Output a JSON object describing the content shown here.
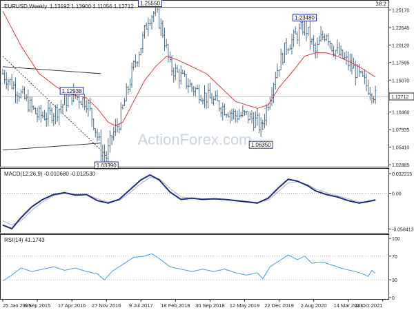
{
  "colors": {
    "bar": "#4a6f8a",
    "ma": "#e8323a",
    "macd": "#1a2a88",
    "signal": "#b0b0b0",
    "rsi": "#3c9cf0",
    "box": "#1e2aa6",
    "watermark": "#c9d5e0",
    "axis": "#222222",
    "dotted": "#9a9a9a"
  },
  "chart_data": [
    {
      "type": "candlestick-ohlc",
      "title": "EURUSD,Weekly",
      "header_values": "1.13192 1.13900 1.11056 1.12712",
      "watermark": "ActionForex.com",
      "ylim": [
        1.028,
        1.262
      ],
      "y_ticks": [
        {
          "v": 1.2517,
          "label": "1.25170"
        },
        {
          "v": 1.2264,
          "label": "1.22645"
        },
        {
          "v": 1.2012,
          "label": "1.20120"
        },
        {
          "v": 1.176,
          "label": "1.17595"
        },
        {
          "v": 1.1507,
          "label": "1.15070"
        },
        {
          "v": 1.1046,
          "label": "1.10460"
        },
        {
          "v": 1.0794,
          "label": "1.07935"
        },
        {
          "v": 1.0541,
          "label": "1.05410"
        },
        {
          "v": 1.0289,
          "label": "1.02885"
        }
      ],
      "last_price": {
        "v": 1.12712,
        "label": "1.12712"
      },
      "fib_label": {
        "v": 1.2555,
        "label": "38.2"
      },
      "price_anchors": [
        [
          0,
          1.16
        ],
        [
          10,
          1.13
        ],
        [
          19,
          1.1
        ],
        [
          25,
          1.1
        ],
        [
          31,
          1.11
        ],
        [
          38,
          1.13
        ],
        [
          46,
          1.12
        ],
        [
          50,
          1.09
        ],
        [
          54,
          1.05
        ],
        [
          57,
          1.04
        ],
        [
          60,
          1.07
        ],
        [
          64,
          1.09
        ],
        [
          68,
          1.13
        ],
        [
          72,
          1.17
        ],
        [
          76,
          1.2
        ],
        [
          80,
          1.24
        ],
        [
          84,
          1.25
        ],
        [
          88,
          1.22
        ],
        [
          92,
          1.17
        ],
        [
          96,
          1.16
        ],
        [
          100,
          1.15
        ],
        [
          104,
          1.14
        ],
        [
          110,
          1.13
        ],
        [
          116,
          1.12
        ],
        [
          122,
          1.11
        ],
        [
          128,
          1.1
        ],
        [
          134,
          1.1
        ],
        [
          140,
          1.09
        ],
        [
          142,
          1.08
        ],
        [
          144,
          1.1
        ],
        [
          147,
          1.13
        ],
        [
          150,
          1.16
        ],
        [
          153,
          1.18
        ],
        [
          156,
          1.2
        ],
        [
          160,
          1.21
        ],
        [
          163,
          1.22
        ],
        [
          166,
          1.23
        ],
        [
          169,
          1.21
        ],
        [
          172,
          1.19
        ],
        [
          175,
          1.21
        ],
        [
          178,
          1.22
        ],
        [
          181,
          1.2
        ],
        [
          184,
          1.19
        ],
        [
          188,
          1.18
        ],
        [
          192,
          1.17
        ],
        [
          195,
          1.16
        ],
        [
          198,
          1.15
        ],
        [
          201,
          1.14
        ],
        [
          203,
          1.135
        ],
        [
          205,
          1.127
        ]
      ],
      "ma_anchors": [
        [
          0,
          1.25
        ],
        [
          10,
          1.2
        ],
        [
          20,
          1.16
        ],
        [
          30,
          1.14
        ],
        [
          38,
          1.13
        ],
        [
          46,
          1.125
        ],
        [
          52,
          1.11
        ],
        [
          58,
          1.09
        ],
        [
          62,
          1.085
        ],
        [
          66,
          1.09
        ],
        [
          72,
          1.12
        ],
        [
          78,
          1.15
        ],
        [
          84,
          1.17
        ],
        [
          90,
          1.185
        ],
        [
          96,
          1.18
        ],
        [
          104,
          1.17
        ],
        [
          112,
          1.16
        ],
        [
          120,
          1.14
        ],
        [
          128,
          1.12
        ],
        [
          134,
          1.115
        ],
        [
          140,
          1.11
        ],
        [
          146,
          1.115
        ],
        [
          152,
          1.14
        ],
        [
          160,
          1.165
        ],
        [
          166,
          1.185
        ],
        [
          172,
          1.19
        ],
        [
          178,
          1.19
        ],
        [
          184,
          1.185
        ],
        [
          190,
          1.178
        ],
        [
          196,
          1.17
        ],
        [
          202,
          1.16
        ],
        [
          205,
          1.155
        ]
      ],
      "annotations": [
        {
          "i": 81,
          "price": 1.2555,
          "label": "1.25550",
          "pos": "above"
        },
        {
          "i": 166,
          "price": 1.2348,
          "label": "1.23480",
          "pos": "above"
        },
        {
          "i": 38,
          "price": 1.1293,
          "label": "1.12938",
          "pos": "above"
        },
        {
          "i": 57,
          "price": 1.0339,
          "label": "1.03390",
          "pos": "below"
        },
        {
          "i": 142,
          "price": 1.0635,
          "label": "1.06350",
          "pos": "below"
        }
      ],
      "trendlines": [
        {
          "from": [
            0,
            1.17
          ],
          "to": [
            54,
            1.16
          ]
        },
        {
          "from": [
            0,
            1.05
          ],
          "to": [
            54,
            1.06
          ]
        },
        {
          "from": [
            0,
            1.185
          ],
          "to": [
            56,
            1.045
          ]
        }
      ]
    },
    {
      "type": "line",
      "title": "MACD(12,26,9) -0.010680 -0.012530",
      "ylim": [
        -0.0625,
        0.0345
      ],
      "y_ticks": [
        {
          "v": 0.032215,
          "label": "0.032215"
        },
        {
          "v": 0.0,
          "label": "0.00"
        },
        {
          "v": -0.058413,
          "label": "-0.058413"
        }
      ],
      "series": [
        {
          "role": "macd",
          "anchors": [
            [
              0,
              -0.052
            ],
            [
              5,
              -0.058
            ],
            [
              10,
              -0.04
            ],
            [
              16,
              -0.022
            ],
            [
              22,
              -0.01
            ],
            [
              28,
              -0.002
            ],
            [
              34,
              0.001
            ],
            [
              40,
              -0.003
            ],
            [
              46,
              -0.002
            ],
            [
              52,
              -0.012
            ],
            [
              58,
              -0.016
            ],
            [
              64,
              -0.01
            ],
            [
              70,
              0.006
            ],
            [
              76,
              0.022
            ],
            [
              81,
              0.03
            ],
            [
              86,
              0.022
            ],
            [
              92,
              0.002
            ],
            [
              98,
              -0.01
            ],
            [
              104,
              -0.008
            ],
            [
              110,
              -0.01
            ],
            [
              116,
              -0.009
            ],
            [
              122,
              -0.01
            ],
            [
              128,
              -0.012
            ],
            [
              134,
              -0.014
            ],
            [
              140,
              -0.016
            ],
            [
              146,
              -0.008
            ],
            [
              152,
              0.01
            ],
            [
              157,
              0.023
            ],
            [
              162,
              0.02
            ],
            [
              168,
              0.012
            ],
            [
              172,
              0.004
            ],
            [
              178,
              -0.002
            ],
            [
              184,
              -0.006
            ],
            [
              190,
              -0.012
            ],
            [
              196,
              -0.016
            ],
            [
              200,
              -0.014
            ],
            [
              205,
              -0.0107
            ]
          ]
        },
        {
          "role": "signal",
          "anchors": [
            [
              0,
              -0.045
            ],
            [
              5,
              -0.052
            ],
            [
              10,
              -0.045
            ],
            [
              16,
              -0.028
            ],
            [
              22,
              -0.014
            ],
            [
              28,
              -0.004
            ],
            [
              34,
              0.0
            ],
            [
              40,
              -0.001
            ],
            [
              46,
              -0.002
            ],
            [
              52,
              -0.009
            ],
            [
              58,
              -0.014
            ],
            [
              64,
              -0.012
            ],
            [
              70,
              0.001
            ],
            [
              76,
              0.016
            ],
            [
              81,
              0.026
            ],
            [
              86,
              0.024
            ],
            [
              92,
              0.008
            ],
            [
              98,
              -0.006
            ],
            [
              104,
              -0.008
            ],
            [
              110,
              -0.009
            ],
            [
              116,
              -0.009
            ],
            [
              122,
              -0.01
            ],
            [
              128,
              -0.011
            ],
            [
              134,
              -0.013
            ],
            [
              140,
              -0.015
            ],
            [
              146,
              -0.011
            ],
            [
              152,
              0.004
            ],
            [
              157,
              0.017
            ],
            [
              162,
              0.019
            ],
            [
              168,
              0.014
            ],
            [
              172,
              0.007
            ],
            [
              178,
              0.001
            ],
            [
              184,
              -0.004
            ],
            [
              190,
              -0.009
            ],
            [
              196,
              -0.014
            ],
            [
              200,
              -0.014
            ],
            [
              205,
              -0.0125
            ]
          ]
        }
      ]
    },
    {
      "type": "line",
      "title": "RSI(14) 41.1743",
      "ylim": [
        0,
        100
      ],
      "y_ticks": [
        {
          "v": 100,
          "label": "100"
        },
        {
          "v": 70,
          "label": "70"
        },
        {
          "v": 30,
          "label": "30"
        },
        {
          "v": 0,
          "label": "0"
        }
      ],
      "levels": [
        70,
        30
      ],
      "anchors": [
        [
          0,
          28
        ],
        [
          5,
          38
        ],
        [
          10,
          50
        ],
        [
          16,
          44
        ],
        [
          22,
          48
        ],
        [
          28,
          52
        ],
        [
          34,
          46
        ],
        [
          40,
          50
        ],
        [
          46,
          44
        ],
        [
          52,
          40
        ],
        [
          56,
          30
        ],
        [
          60,
          44
        ],
        [
          66,
          56
        ],
        [
          72,
          68
        ],
        [
          78,
          70
        ],
        [
          82,
          74
        ],
        [
          86,
          66
        ],
        [
          92,
          52
        ],
        [
          98,
          48
        ],
        [
          104,
          44
        ],
        [
          110,
          48
        ],
        [
          116,
          44
        ],
        [
          122,
          48
        ],
        [
          128,
          42
        ],
        [
          134,
          38
        ],
        [
          140,
          42
        ],
        [
          143,
          32
        ],
        [
          147,
          52
        ],
        [
          152,
          62
        ],
        [
          157,
          72
        ],
        [
          162,
          64
        ],
        [
          166,
          70
        ],
        [
          170,
          58
        ],
        [
          176,
          60
        ],
        [
          182,
          54
        ],
        [
          188,
          48
        ],
        [
          194,
          44
        ],
        [
          198,
          40
        ],
        [
          201,
          36
        ],
        [
          203,
          46
        ],
        [
          205,
          41
        ]
      ]
    }
  ],
  "x_labels": [
    {
      "i": 0,
      "label": "25 Jan 2015"
    },
    {
      "i": 19,
      "label": "6 Sep 2015"
    },
    {
      "i": 38,
      "label": "17 Apr 2016"
    },
    {
      "i": 57,
      "label": "27 Nov 2016"
    },
    {
      "i": 76,
      "label": "9 Jul 2017"
    },
    {
      "i": 95,
      "label": "18 Feb 2018"
    },
    {
      "i": 114,
      "label": "30 Sep 2018"
    },
    {
      "i": 133,
      "label": "12 May 2019"
    },
    {
      "i": 152,
      "label": "22 Dec 2019"
    },
    {
      "i": 171,
      "label": "2 Aug 2020"
    },
    {
      "i": 190,
      "label": "14 Mar 2021"
    },
    {
      "i": 209,
      "label": "24 Oct 2021"
    }
  ]
}
